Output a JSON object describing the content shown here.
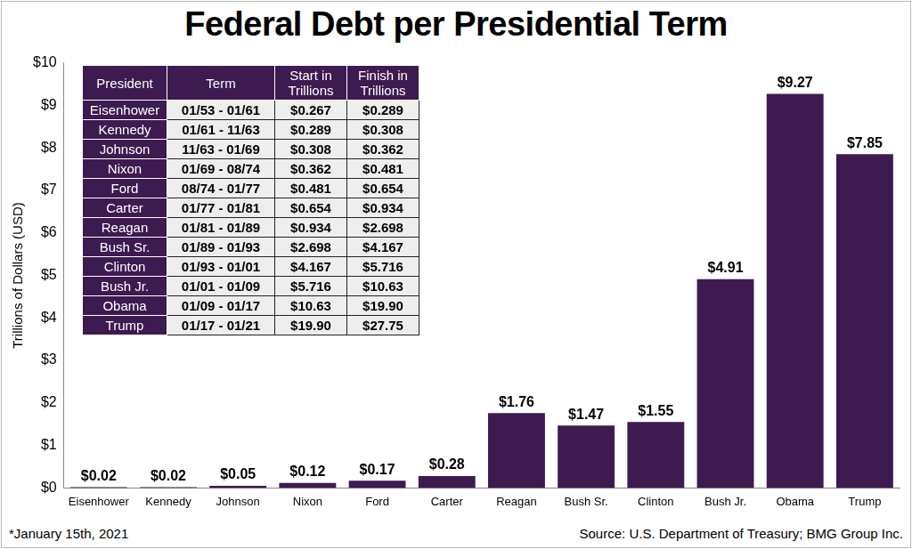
{
  "chart_data": {
    "type": "bar",
    "title": "Federal Debt per Presidential Term",
    "y_label": "Trillions of Dollars (USD)",
    "categories": [
      "Eisenhower",
      "Kennedy",
      "Johnson",
      "Nixon",
      "Ford",
      "Carter",
      "Reagan",
      "Bush Sr.",
      "Clinton",
      "Bush Jr.",
      "Obama",
      "Trump"
    ],
    "values": [
      0.02,
      0.02,
      0.05,
      0.12,
      0.17,
      0.28,
      1.76,
      1.47,
      1.55,
      4.91,
      9.27,
      7.85
    ],
    "value_labels": [
      "$0.02",
      "$0.02",
      "$0.05",
      "$0.12",
      "$0.17",
      "$0.28",
      "$1.76",
      "$1.47",
      "$1.55",
      "$4.91",
      "$9.27",
      "$7.85"
    ],
    "color": "#3d1a4f",
    "ylim": [
      0,
      10
    ],
    "yticks": [
      {
        "value": 0,
        "label": "$0"
      },
      {
        "value": 1,
        "label": "$1"
      },
      {
        "value": 2,
        "label": "$2"
      },
      {
        "value": 3,
        "label": "$3"
      },
      {
        "value": 4,
        "label": "$4"
      },
      {
        "value": 5,
        "label": "$5"
      },
      {
        "value": 6,
        "label": "$6"
      },
      {
        "value": 7,
        "label": "$7"
      },
      {
        "value": 8,
        "label": "$8"
      },
      {
        "value": 9,
        "label": "$9"
      },
      {
        "value": 10,
        "label": "$10"
      }
    ],
    "grid": false,
    "data_labels": true,
    "table": {
      "columns": [
        "President",
        "Term",
        "Start in Trillions",
        "Finish in Trillions"
      ],
      "rows": [
        [
          "Eisenhower",
          "01/53 - 01/61",
          "$0.267",
          "$0.289"
        ],
        [
          "Kennedy",
          "01/61 - 11/63",
          "$0.289",
          "$0.308"
        ],
        [
          "Johnson",
          "11/63 - 01/69",
          "$0.308",
          "$0.362"
        ],
        [
          "Nixon",
          "01/69 - 08/74",
          "$0.362",
          "$0.481"
        ],
        [
          "Ford",
          "08/74 - 01/77",
          "$0.481",
          "$0.654"
        ],
        [
          "Carter",
          "01/77 - 01/81",
          "$0.654",
          "$0.934"
        ],
        [
          "Reagan",
          "01/81 - 01/89",
          "$0.934",
          "$2.698"
        ],
        [
          "Bush Sr.",
          "01/89 - 01/93",
          "$2.698",
          "$4.167"
        ],
        [
          "Clinton",
          "01/93 - 01/01",
          "$4.167",
          "$5.716"
        ],
        [
          "Bush Jr.",
          "01/01 - 01/09",
          "$5.716",
          "$10.63"
        ],
        [
          "Obama",
          "01/09 - 01/17",
          "$10.63",
          "$19.90"
        ],
        [
          "Trump",
          "01/17 - 01/21",
          "$19.90",
          "$27.75"
        ]
      ]
    },
    "annotations": [
      "*January 15th, 2021",
      "Source: U.S. Department of Treasury; BMG Group Inc."
    ]
  }
}
